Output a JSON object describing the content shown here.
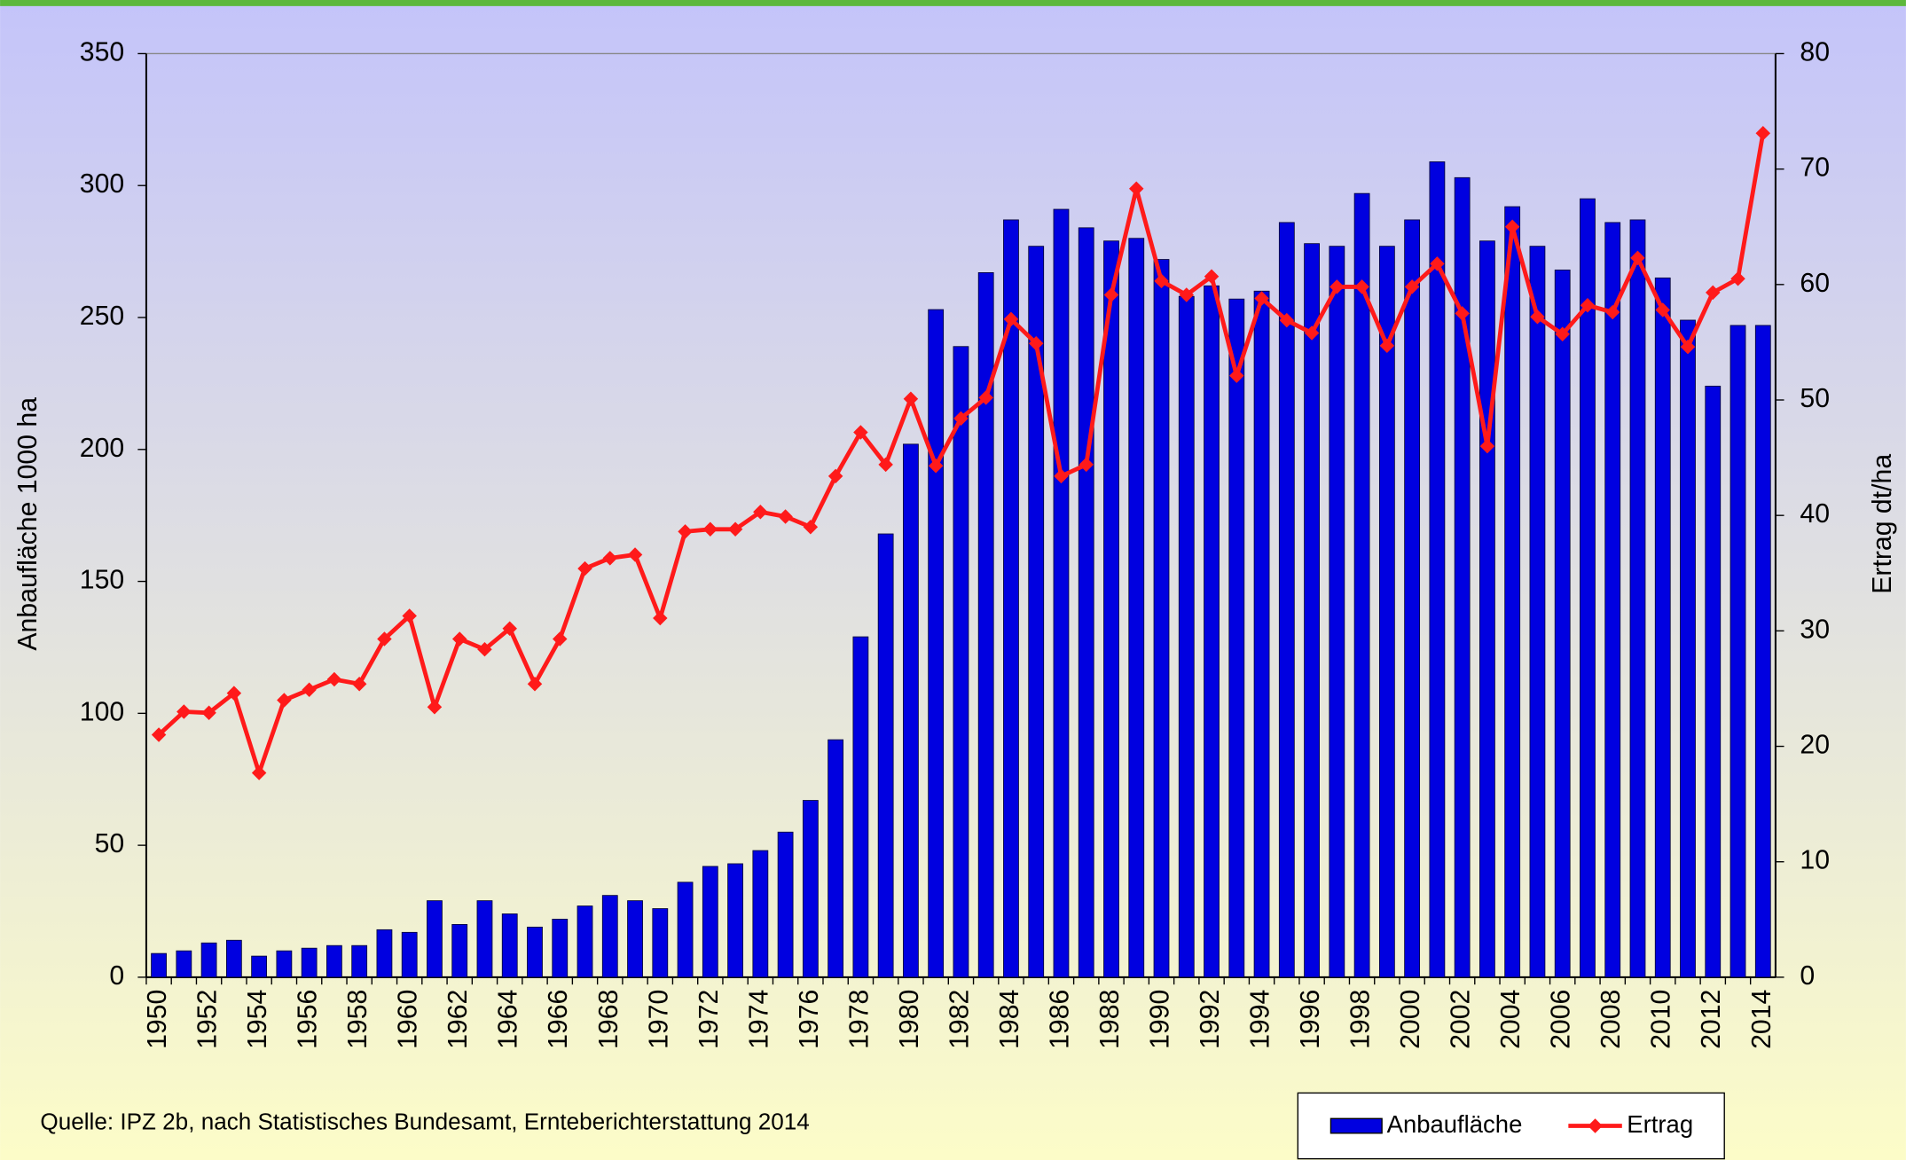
{
  "chart_data": {
    "type": "bar_line",
    "source": "Quelle: IPZ 2b, nach Statistisches Bundesamt, Ernteberichterstattung 2014",
    "ylabel": "Anbaufläche  1000 ha",
    "y2label": "Ertrag dt/ha",
    "categories": [
      1950,
      null,
      1952,
      null,
      1954,
      null,
      1956,
      null,
      1958,
      null,
      1960,
      null,
      1962,
      null,
      1964,
      null,
      1966,
      null,
      1968,
      null,
      1970,
      null,
      1972,
      null,
      1974,
      null,
      1976,
      null,
      1978,
      null,
      1980,
      null,
      1982,
      null,
      1984,
      null,
      1986,
      null,
      1988,
      null,
      1990,
      null,
      1992,
      null,
      1994,
      null,
      1996,
      null,
      1998,
      null,
      2000,
      null,
      2002,
      null,
      2004,
      null,
      2006,
      null,
      2008,
      null,
      2010,
      null,
      2012,
      null,
      2014
    ],
    "series": [
      {
        "name": "Anbaufläche",
        "color": "#0000e0",
        "kind": "bar",
        "axis": "y",
        "values": [
          9,
          10,
          13,
          14,
          8,
          10,
          11,
          12,
          12,
          18,
          17,
          29,
          20,
          29,
          24,
          19,
          22,
          27,
          31,
          29,
          26,
          36,
          42,
          43,
          48,
          55,
          67,
          90,
          129,
          168,
          202,
          253,
          239,
          267,
          287,
          277,
          291,
          284,
          279,
          280,
          272,
          258,
          262,
          257,
          260,
          286,
          278,
          277,
          297,
          277,
          287,
          309,
          303,
          279,
          292,
          277,
          268,
          295,
          286,
          287,
          265,
          249,
          224,
          247,
          247
        ]
      },
      {
        "name": "Ertrag",
        "color": "#ff1a1a",
        "kind": "line",
        "axis": "y2",
        "values": [
          21.0,
          23.0,
          22.9,
          24.6,
          17.7,
          24.0,
          24.9,
          25.8,
          25.4,
          29.3,
          31.3,
          23.4,
          29.3,
          28.4,
          30.2,
          25.4,
          29.3,
          35.4,
          36.3,
          36.6,
          31.1,
          38.6,
          38.8,
          38.8,
          40.3,
          39.9,
          39.0,
          43.4,
          47.2,
          44.4,
          50.1,
          44.3,
          48.4,
          50.2,
          57.0,
          54.9,
          43.4,
          44.4,
          59.1,
          68.3,
          60.3,
          59.1,
          60.7,
          52.1,
          58.8,
          56.9,
          55.8,
          59.8,
          59.8,
          54.7,
          59.8,
          61.8,
          57.5,
          46.0,
          65.0,
          57.2,
          55.7,
          58.2,
          57.6,
          62.3,
          57.8,
          54.6,
          59.3,
          60.5,
          73.1
        ]
      }
    ],
    "ylim": [
      0,
      350
    ],
    "yticks": [
      0,
      50,
      100,
      150,
      200,
      250,
      300,
      350
    ],
    "y2lim": [
      0,
      80
    ],
    "y2ticks": [
      0,
      10,
      20,
      30,
      40,
      50,
      60,
      70,
      80
    ]
  }
}
